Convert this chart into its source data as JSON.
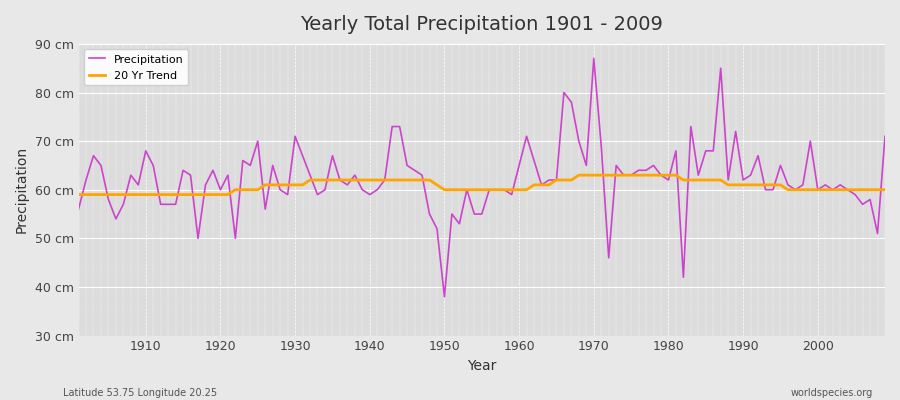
{
  "title": "Yearly Total Precipitation 1901 - 2009",
  "xlabel": "Year",
  "ylabel": "Precipitation",
  "subtitle_left": "Latitude 53.75 Longitude 20.25",
  "subtitle_right": "worldspecies.org",
  "ylim": [
    30,
    90
  ],
  "xlim": [
    1901,
    2009
  ],
  "yticks": [
    30,
    40,
    50,
    60,
    70,
    80,
    90
  ],
  "ytick_labels": [
    "30 cm",
    "40 cm",
    "50 cm",
    "60 cm",
    "70 cm",
    "80 cm",
    "90 cm"
  ],
  "xticks": [
    1910,
    1920,
    1930,
    1940,
    1950,
    1960,
    1970,
    1980,
    1990,
    2000
  ],
  "precip_color": "#CC44CC",
  "trend_color": "#FFA500",
  "bg_color": "#E8E8E8",
  "plot_bg_color": "#DCDCDC",
  "grid_color": "#FFFFFF",
  "years": [
    1901,
    1902,
    1903,
    1904,
    1905,
    1906,
    1907,
    1908,
    1909,
    1910,
    1911,
    1912,
    1913,
    1914,
    1915,
    1916,
    1917,
    1918,
    1919,
    1920,
    1921,
    1922,
    1923,
    1924,
    1925,
    1926,
    1927,
    1928,
    1929,
    1930,
    1931,
    1932,
    1933,
    1934,
    1935,
    1936,
    1937,
    1938,
    1939,
    1940,
    1941,
    1942,
    1943,
    1944,
    1945,
    1946,
    1947,
    1948,
    1949,
    1950,
    1951,
    1952,
    1953,
    1954,
    1955,
    1956,
    1957,
    1958,
    1959,
    1960,
    1961,
    1962,
    1963,
    1964,
    1965,
    1966,
    1967,
    1968,
    1969,
    1970,
    1971,
    1972,
    1973,
    1974,
    1975,
    1976,
    1977,
    1978,
    1979,
    1980,
    1981,
    1982,
    1983,
    1984,
    1985,
    1986,
    1987,
    1988,
    1989,
    1990,
    1991,
    1992,
    1993,
    1994,
    1995,
    1996,
    1997,
    1998,
    1999,
    2000,
    2001,
    2002,
    2003,
    2004,
    2005,
    2006,
    2007,
    2008,
    2009
  ],
  "precipitation": [
    56,
    62,
    67,
    65,
    58,
    54,
    57,
    63,
    61,
    68,
    65,
    57,
    57,
    57,
    64,
    63,
    50,
    61,
    64,
    60,
    63,
    50,
    66,
    65,
    70,
    56,
    65,
    60,
    59,
    71,
    67,
    63,
    59,
    60,
    67,
    62,
    61,
    63,
    60,
    59,
    60,
    62,
    73,
    73,
    65,
    64,
    63,
    55,
    52,
    38,
    55,
    53,
    60,
    55,
    55,
    60,
    60,
    60,
    59,
    65,
    71,
    66,
    61,
    62,
    62,
    80,
    78,
    70,
    65,
    87,
    69,
    46,
    65,
    63,
    63,
    64,
    64,
    65,
    63,
    62,
    68,
    42,
    73,
    63,
    68,
    68,
    85,
    62,
    72,
    62,
    63,
    67,
    60,
    60,
    65,
    61,
    60,
    61,
    70,
    60,
    61,
    60,
    61,
    60,
    59,
    57,
    58,
    51,
    71
  ],
  "trend": [
    59,
    59,
    59,
    59,
    59,
    59,
    59,
    59,
    59,
    59,
    59,
    59,
    59,
    59,
    59,
    59,
    59,
    59,
    59,
    59,
    59,
    60,
    60,
    60,
    60,
    61,
    61,
    61,
    61,
    61,
    61,
    62,
    62,
    62,
    62,
    62,
    62,
    62,
    62,
    62,
    62,
    62,
    62,
    62,
    62,
    62,
    62,
    62,
    61,
    60,
    60,
    60,
    60,
    60,
    60,
    60,
    60,
    60,
    60,
    60,
    60,
    61,
    61,
    61,
    62,
    62,
    62,
    63,
    63,
    63,
    63,
    63,
    63,
    63,
    63,
    63,
    63,
    63,
    63,
    63,
    63,
    62,
    62,
    62,
    62,
    62,
    62,
    61,
    61,
    61,
    61,
    61,
    61,
    61,
    61,
    60,
    60,
    60,
    60,
    60,
    60,
    60,
    60,
    60,
    60,
    60,
    60,
    60,
    60
  ]
}
